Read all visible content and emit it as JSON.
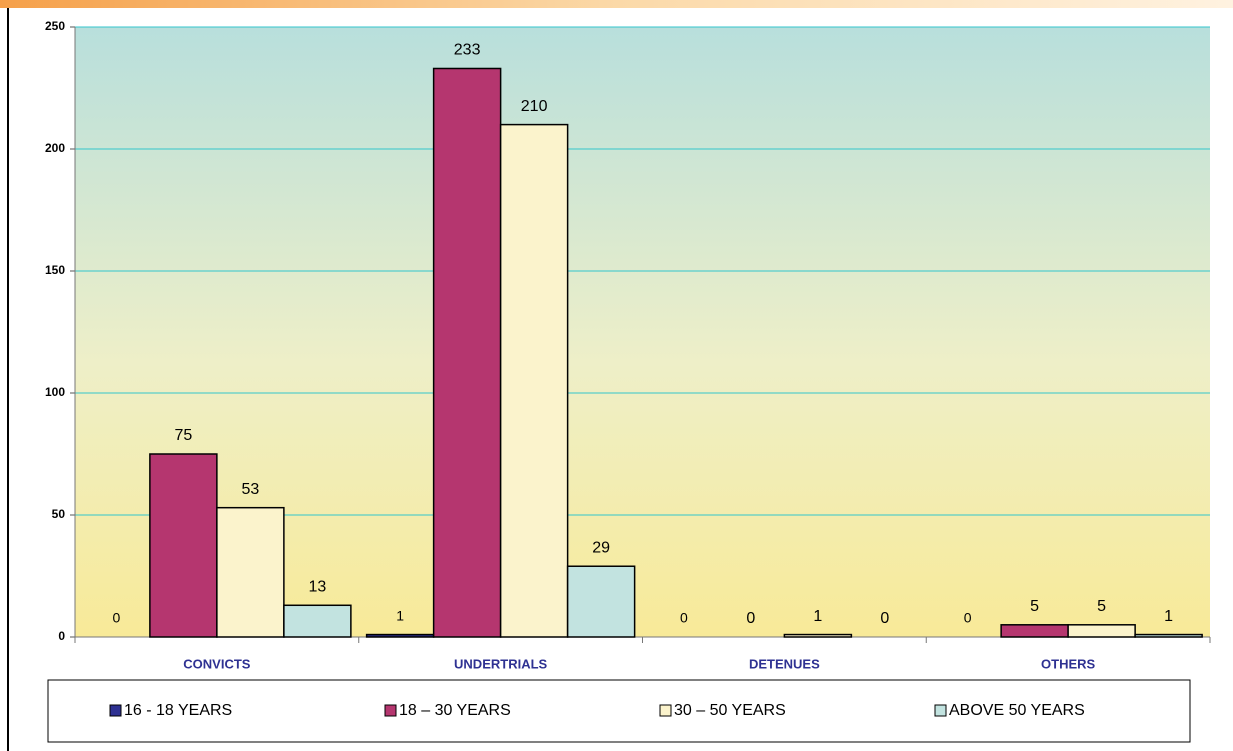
{
  "chart_data": {
    "type": "bar",
    "categories": [
      "CONVICTS",
      "UNDERTRIALS",
      "DETENUES",
      "OTHERS"
    ],
    "series": [
      {
        "name": "16 - 18 YEARS",
        "color": "#2e3192",
        "values": [
          0,
          1,
          0,
          0
        ]
      },
      {
        "name": "18 – 30 YEARS",
        "color": "#b5366f",
        "values": [
          75,
          233,
          0,
          5
        ]
      },
      {
        "name": "30 – 50 YEARS",
        "color": "#fbf3cc",
        "values": [
          53,
          210,
          1,
          5
        ]
      },
      {
        "name": "ABOVE 50 YEARS",
        "color": "#c2e3e0",
        "values": [
          13,
          29,
          0,
          1
        ]
      }
    ],
    "ylim": [
      0,
      250
    ],
    "yticks": [
      0,
      50,
      100,
      150,
      200,
      250
    ],
    "grid": true,
    "legend": "bottom"
  }
}
